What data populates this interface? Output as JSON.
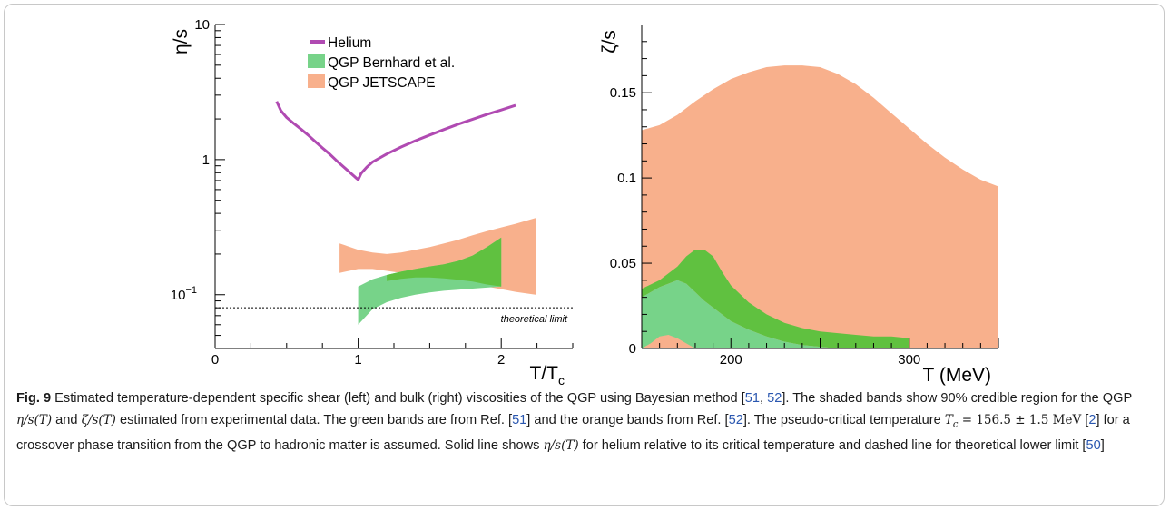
{
  "chart_data": [
    {
      "type": "line",
      "panel": "left",
      "ylabel": "η/s",
      "xlabel": "T/T",
      "xlabel_sub": "c",
      "xlim": [
        0,
        2.5
      ],
      "ylim": [
        0.04,
        10
      ],
      "yscale": "log",
      "x_ticks": [
        0,
        1,
        2
      ],
      "y_ticks": [
        {
          "value": 10,
          "label": "10"
        },
        {
          "value": 1,
          "label": "1"
        },
        {
          "value": 0.1,
          "label": "10",
          "sup": "−1"
        }
      ],
      "legend": {
        "position": "top",
        "entries": [
          "Helium",
          "QGP Bernhard et al.",
          "QGP JETSCAPE"
        ]
      },
      "series": [
        {
          "name": "Helium",
          "kind": "line",
          "color": "#b04ab2",
          "x": [
            0.43,
            0.46,
            0.5,
            0.55,
            0.6,
            0.65,
            0.7,
            0.75,
            0.8,
            0.85,
            0.9,
            0.95,
            0.98,
            1.0,
            1.02,
            1.06,
            1.1,
            1.2,
            1.3,
            1.4,
            1.5,
            1.6,
            1.7,
            1.8,
            1.9,
            2.0,
            2.1
          ],
          "y": [
            2.7,
            2.3,
            2.05,
            1.85,
            1.68,
            1.52,
            1.36,
            1.22,
            1.1,
            0.98,
            0.88,
            0.79,
            0.74,
            0.71,
            0.79,
            0.88,
            0.96,
            1.1,
            1.24,
            1.38,
            1.52,
            1.67,
            1.83,
            1.99,
            2.16,
            2.33,
            2.52
          ]
        },
        {
          "name": "QGP JETSCAPE",
          "kind": "band",
          "color": "#f8b08c",
          "x": [
            0.87,
            1.0,
            1.1,
            1.2,
            1.3,
            1.4,
            1.5,
            1.6,
            1.7,
            1.8,
            1.9,
            2.0,
            2.1,
            2.24
          ],
          "upper": [
            0.24,
            0.215,
            0.205,
            0.2,
            0.205,
            0.215,
            0.225,
            0.24,
            0.255,
            0.275,
            0.295,
            0.315,
            0.335,
            0.37
          ],
          "lower": [
            0.145,
            0.155,
            0.155,
            0.15,
            0.145,
            0.14,
            0.135,
            0.13,
            0.125,
            0.12,
            0.115,
            0.11,
            0.105,
            0.1
          ]
        },
        {
          "name": "QGP Bernhard et al.",
          "kind": "band",
          "color": "#77d389",
          "x": [
            1.0,
            1.1,
            1.2,
            1.3,
            1.4,
            1.5,
            1.6,
            1.7,
            1.8,
            1.9,
            2.0
          ],
          "upper": [
            0.115,
            0.13,
            0.14,
            0.148,
            0.155,
            0.162,
            0.168,
            0.178,
            0.195,
            0.225,
            0.265
          ],
          "lower": [
            0.06,
            0.078,
            0.088,
            0.095,
            0.1,
            0.104,
            0.107,
            0.109,
            0.111,
            0.113,
            0.115
          ]
        },
        {
          "name": "QGP Bernhard et al. (mode)",
          "kind": "band",
          "color": "#60c140",
          "x": [
            1.2,
            1.3,
            1.4,
            1.5,
            1.6,
            1.7,
            1.8,
            1.9,
            2.0
          ],
          "upper": [
            0.14,
            0.148,
            0.155,
            0.162,
            0.168,
            0.178,
            0.195,
            0.225,
            0.265
          ],
          "lower": [
            0.126,
            0.131,
            0.134,
            0.134,
            0.132,
            0.129,
            0.125,
            0.119,
            0.115
          ]
        }
      ],
      "reference_line": {
        "y": 0.08,
        "label": "theoretical limit",
        "style": "dotted"
      }
    },
    {
      "type": "area",
      "panel": "right",
      "ylabel": "ζ/s",
      "xlabel": "T (MeV)",
      "xlim": [
        150,
        350
      ],
      "ylim": [
        0,
        0.19
      ],
      "x_ticks": [
        200,
        300
      ],
      "y_ticks": [
        {
          "value": 0,
          "label": "0"
        },
        {
          "value": 0.05,
          "label": "0.05"
        },
        {
          "value": 0.1,
          "label": "0.1"
        },
        {
          "value": 0.15,
          "label": "0.15"
        }
      ],
      "series": [
        {
          "name": "QGP JETSCAPE",
          "kind": "band",
          "color": "#f8b08c",
          "x": [
            150,
            160,
            170,
            180,
            190,
            200,
            210,
            220,
            230,
            240,
            250,
            260,
            270,
            280,
            290,
            300,
            310,
            320,
            330,
            340,
            350
          ],
          "upper": [
            0.128,
            0.131,
            0.137,
            0.145,
            0.152,
            0.158,
            0.162,
            0.165,
            0.166,
            0.166,
            0.165,
            0.161,
            0.155,
            0.147,
            0.138,
            0.129,
            0.12,
            0.112,
            0.105,
            0.099,
            0.095
          ],
          "lower": [
            0,
            0,
            0,
            0,
            0,
            0,
            0,
            0,
            0,
            0,
            0,
            0,
            0,
            0,
            0,
            0,
            0,
            0,
            0,
            0,
            0
          ]
        },
        {
          "name": "QGP Bernhard et al.",
          "kind": "band",
          "color": "#60c140",
          "x": [
            150,
            160,
            170,
            175,
            180,
            185,
            190,
            195,
            200,
            210,
            220,
            230,
            240,
            250,
            260,
            270,
            280,
            290,
            300
          ],
          "upper": [
            0.035,
            0.04,
            0.048,
            0.054,
            0.058,
            0.058,
            0.054,
            0.045,
            0.037,
            0.027,
            0.02,
            0.015,
            0.012,
            0.01,
            0.009,
            0.008,
            0.007,
            0.007,
            0.006
          ],
          "lower": [
            0.03,
            0.036,
            0.04,
            0.038,
            0.033,
            0.028,
            0.024,
            0.02,
            0.016,
            0.011,
            0.007,
            0.004,
            0.002,
            0.001,
            0,
            0,
            0,
            0,
            0
          ]
        },
        {
          "name": "QGP Bernhard et al. (lower band)",
          "kind": "band",
          "color": "#77d389",
          "x": [
            150,
            155,
            160,
            165,
            170,
            175,
            180,
            185,
            190,
            195,
            200,
            210,
            220,
            230,
            240,
            250,
            260
          ],
          "upper": [
            0.03,
            0.033,
            0.036,
            0.038,
            0.04,
            0.038,
            0.033,
            0.028,
            0.024,
            0.02,
            0.016,
            0.011,
            0.007,
            0.004,
            0.002,
            0.001,
            0
          ],
          "lower": [
            0,
            0.003,
            0.007,
            0.008,
            0.006,
            0.003,
            0,
            0,
            0,
            0,
            0,
            0,
            0,
            0,
            0,
            0,
            0
          ]
        }
      ]
    }
  ],
  "caption": {
    "label": "Fig. 9",
    "s1": " Estimated temperature-dependent specific shear (left) and bulk (right) viscosities of the QGP using Bayesian method [",
    "ref_a": "51",
    "sep1": ", ",
    "ref_b": "52",
    "s2": "]. The shaded bands show 90% credible region for the QGP ",
    "eta_s": "η/s(T)",
    "and": " and ",
    "zeta_s": "ζ/s(T)",
    "s3": " estimated from experimental data. The green bands are from Ref. [",
    "ref_c": "51",
    "s4": "] and the orange bands from Ref. [",
    "ref_d": "52",
    "s5": "]. The pseudo-critical temperature ",
    "tc": "T",
    "tc_sub": "c",
    "tc_val": " = 156.5 ± 1.5 MeV",
    "s6": " [",
    "ref_e": "2",
    "s7": "] for a crossover phase transition from the QGP to hadronic matter is assumed. Solid line shows ",
    "eta_s2": "η/s(T)",
    "s8": " for helium relative to its critical temperature and dashed line for theoretical lower limit [",
    "ref_f": "50",
    "s9": "]"
  }
}
